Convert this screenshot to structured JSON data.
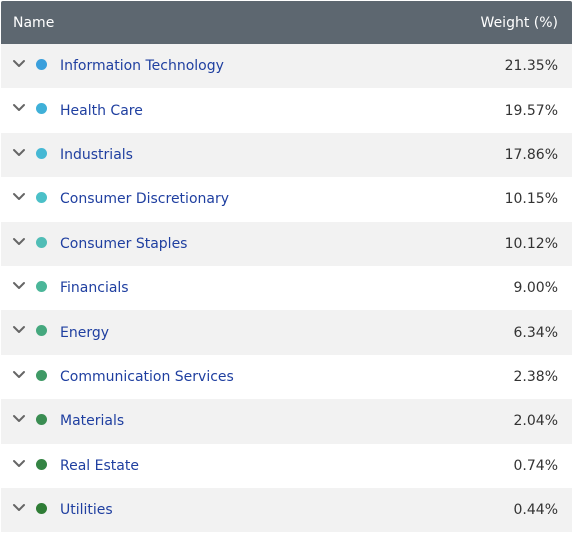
{
  "table": {
    "header": [
      "Name",
      "Weight (%)"
    ],
    "rows": [
      {
        "name": "Information Technology",
        "weight": "21.35%",
        "color": "#3a9fdc"
      },
      {
        "name": "Health Care",
        "weight": "19.57%",
        "color": "#3fb0d8"
      },
      {
        "name": "Industrials",
        "weight": "17.86%",
        "color": "#45b8d4"
      },
      {
        "name": "Consumer Discretionary",
        "weight": "10.15%",
        "color": "#4bc0c8"
      },
      {
        "name": "Consumer Staples",
        "weight": "10.12%",
        "color": "#50bdb6"
      },
      {
        "name": "Financials",
        "weight": "9.00%",
        "color": "#4bb699"
      },
      {
        "name": "Energy",
        "weight": "6.34%",
        "color": "#45a87e"
      },
      {
        "name": "Communication Services",
        "weight": "2.38%",
        "color": "#3f9a66"
      },
      {
        "name": "Materials",
        "weight": "2.04%",
        "color": "#3a8d52"
      },
      {
        "name": "Real Estate",
        "weight": "0.74%",
        "color": "#348444"
      },
      {
        "name": "Utilities",
        "weight": "0.44%",
        "color": "#2f7d36"
      }
    ]
  }
}
